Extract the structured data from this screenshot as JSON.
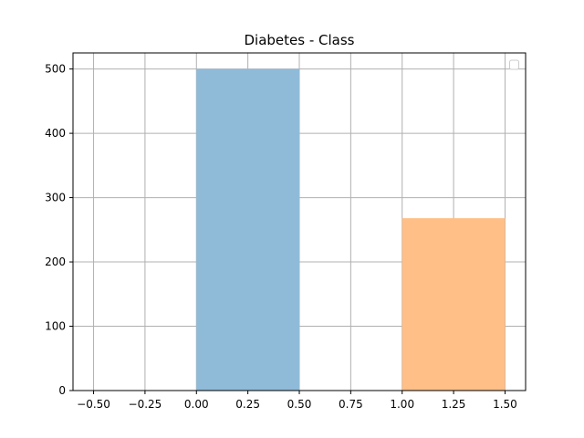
{
  "chart_data": {
    "type": "bar",
    "title": "Diabetes - Class",
    "xlabel": "",
    "ylabel": "",
    "xlim": [
      -0.6,
      1.6
    ],
    "ylim": [
      0,
      525
    ],
    "grid": true,
    "legend": {
      "placement": "top-right",
      "entries": []
    },
    "x_ticks": [
      -0.5,
      -0.25,
      0.0,
      0.25,
      0.5,
      0.75,
      1.0,
      1.25,
      1.5
    ],
    "x_tick_labels": [
      "−0.50",
      "−0.25",
      "0.00",
      "0.25",
      "0.50",
      "0.75",
      "1.00",
      "1.25",
      "1.50"
    ],
    "y_ticks": [
      0,
      100,
      200,
      300,
      400,
      500
    ],
    "y_tick_labels": [
      "0",
      "100",
      "200",
      "300",
      "400",
      "500"
    ],
    "bars": [
      {
        "x_start": 0.0,
        "x_end": 0.5,
        "value": 500,
        "color": "#8fbbd9"
      },
      {
        "x_start": 1.0,
        "x_end": 1.5,
        "value": 268,
        "color": "#ffbf86"
      }
    ],
    "colors": {
      "grid": "#b0b0b0",
      "axes": "#000000",
      "background": "#ffffff"
    }
  }
}
